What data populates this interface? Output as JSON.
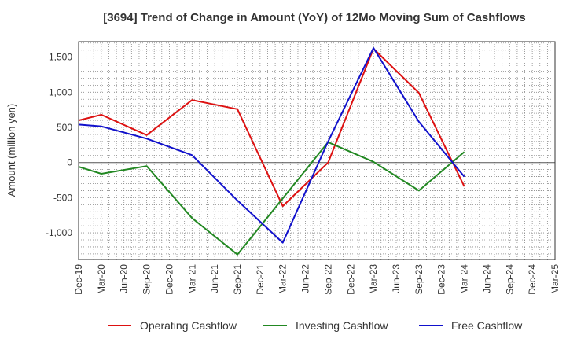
{
  "chart_data": {
    "type": "line",
    "title": "[3694]  Trend of Change in Amount (YoY) of 12Mo Moving Sum of Cashflows",
    "xlabel": "",
    "ylabel": "Amount (million yen)",
    "ylim": [
      -1380,
      1720
    ],
    "yticks": [
      -1000,
      -500,
      0,
      500,
      1000,
      1500
    ],
    "ytick_labels": [
      "-1,000",
      "-500",
      "0",
      "500",
      "1,000",
      "1,500"
    ],
    "categories": [
      "Dec-19",
      "Mar-20",
      "Jun-20",
      "Sep-20",
      "Dec-20",
      "Mar-21",
      "Jun-21",
      "Sep-21",
      "Dec-21",
      "Mar-22",
      "Jun-22",
      "Sep-22",
      "Dec-22",
      "Mar-23",
      "Jun-23",
      "Sep-23",
      "Dec-23",
      "Mar-24",
      "Jun-24",
      "Sep-24",
      "Dec-24",
      "Mar-25"
    ],
    "series": [
      {
        "name": "Operating Cashflow",
        "color": "#dd1111",
        "values": [
          600,
          680,
          null,
          390,
          null,
          890,
          null,
          760,
          null,
          -620,
          null,
          0,
          null,
          1620,
          null,
          990,
          null,
          -340,
          null,
          null,
          null,
          null
        ]
      },
      {
        "name": "Investing Cashflow",
        "color": "#228822",
        "values": [
          -60,
          -160,
          null,
          -50,
          null,
          -790,
          null,
          -1310,
          null,
          -510,
          null,
          290,
          null,
          10,
          null,
          -400,
          null,
          150,
          null,
          null,
          null,
          null
        ]
      },
      {
        "name": "Free Cashflow",
        "color": "#1111cc",
        "values": [
          540,
          515,
          null,
          340,
          null,
          105,
          null,
          -540,
          null,
          -1140,
          null,
          300,
          null,
          1630,
          null,
          580,
          null,
          -200,
          null,
          null,
          null,
          null
        ]
      }
    ],
    "legend_position": "bottom",
    "grid": true
  }
}
